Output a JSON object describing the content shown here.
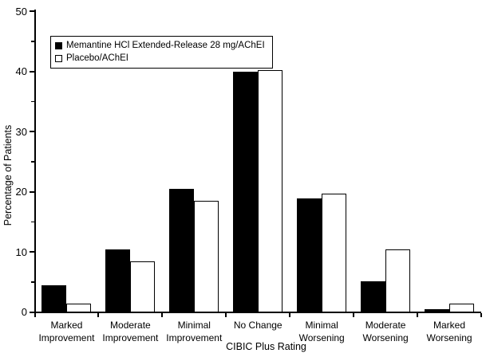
{
  "figure": {
    "background": "#ffffff",
    "axis_color": "#000000",
    "bar_solid_color": "#000000",
    "bar_outline_fill": "#ffffff",
    "bar_outline_border": "#000000"
  },
  "legend": {
    "items": [
      {
        "label": "Memantine HCl Extended-Release 28 mg/AChEI",
        "swatch": "filled-black-square-icon"
      },
      {
        "label": "Placebo/AChEI",
        "swatch": "open-white-square-icon"
      }
    ]
  },
  "chart_data": {
    "type": "bar",
    "title": "",
    "xlabel": "CIBIC Plus Rating",
    "ylabel": "Percentage of Patients",
    "ylim": [
      0,
      50
    ],
    "y_ticks": [
      0,
      10,
      20,
      30,
      40,
      50
    ],
    "y_minor_ticks": [
      5,
      15,
      25,
      35,
      45
    ],
    "grid": false,
    "legend_position": "upper-left-inside",
    "categories": [
      "Marked Improvement",
      "Moderate Improvement",
      "Minimal Improvement",
      "No Change",
      "Minimal Worsening",
      "Moderate Worsening",
      "Marked Worsening"
    ],
    "category_label_lines": [
      [
        "Marked",
        "Improvement"
      ],
      [
        "Moderate",
        "Improvement"
      ],
      [
        "Minimal",
        "Improvement"
      ],
      [
        "No Change"
      ],
      [
        "Minimal",
        "Worsening"
      ],
      [
        "Moderate",
        "Worsening"
      ],
      [
        "Marked",
        "Worsening"
      ]
    ],
    "series": [
      {
        "name": "Memantine HCl Extended-Release 28 mg/AChEI",
        "style": "solid-black",
        "values": [
          4.5,
          10.4,
          20.5,
          40.0,
          19.0,
          5.1,
          0.5
        ]
      },
      {
        "name": "Placebo/AChEI",
        "style": "white-outline",
        "values": [
          1.5,
          8.5,
          18.5,
          40.3,
          19.7,
          10.4,
          1.5
        ]
      }
    ]
  }
}
